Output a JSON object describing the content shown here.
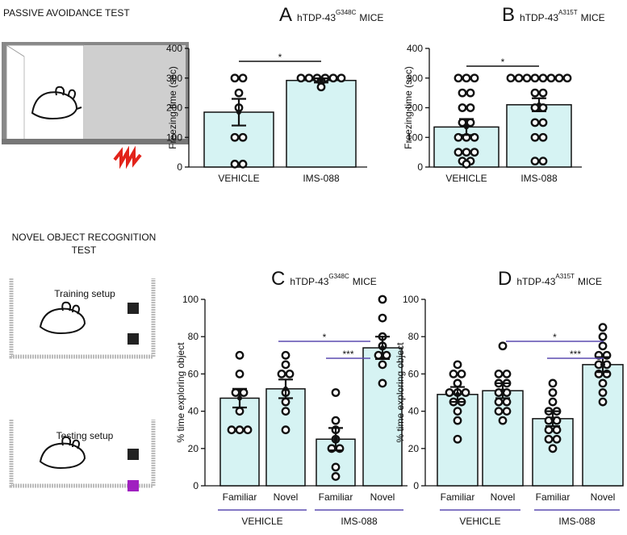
{
  "labels": {
    "passive": "PASSIVE AVOIDANCE TEST",
    "novel_line1": "NOVEL OBJECT RECOGNITION",
    "novel_line2": "TEST",
    "training": "Training setup",
    "testing": "Testing setup"
  },
  "chart_data": [
    {
      "type": "bar",
      "panel": "A",
      "title": "hTDP-43",
      "title_superscript": "G348C",
      "title_suffix": "MICE",
      "ylabel": "Freezing time (sec)",
      "categories": [
        "VEHICLE",
        "IMS-088"
      ],
      "values": [
        185,
        292
      ],
      "errors": [
        45,
        7
      ],
      "points": [
        [
          300,
          300,
          250,
          200,
          100,
          100,
          10,
          10
        ],
        [
          300,
          300,
          300,
          300,
          300,
          300,
          290,
          270
        ]
      ],
      "color": "#d6f3f3",
      "ylim": [
        0,
        400
      ],
      "yticks": [
        0,
        100,
        200,
        300,
        400
      ],
      "annotations": [
        "*"
      ]
    },
    {
      "type": "bar",
      "panel": "B",
      "title": "hTDP-43",
      "title_superscript": "A315T",
      "title_suffix": "MICE",
      "ylabel": "Freezing time (sec)",
      "categories": [
        "VEHICLE",
        "IMS-088"
      ],
      "values": [
        135,
        210
      ],
      "errors": [
        27,
        22
      ],
      "points": [
        [
          300,
          300,
          300,
          250,
          250,
          200,
          200,
          150,
          150,
          100,
          100,
          100,
          50,
          50,
          50,
          20,
          20,
          10
        ],
        [
          300,
          300,
          300,
          300,
          300,
          300,
          300,
          300,
          250,
          250,
          200,
          200,
          150,
          150,
          100,
          100,
          20,
          20
        ]
      ],
      "color": "#d6f3f3",
      "ylim": [
        0,
        400
      ],
      "yticks": [
        0,
        100,
        200,
        300,
        400
      ],
      "annotations": [
        "*"
      ]
    },
    {
      "type": "bar",
      "panel": "C",
      "title": "hTDP-43",
      "title_superscript": "G348C",
      "title_suffix": "MICE",
      "ylabel": "% time exploring object",
      "categories": [
        "Familiar",
        "Novel",
        "Familiar",
        "Novel"
      ],
      "groups": [
        "VEHICLE",
        "IMS-088"
      ],
      "values": [
        47,
        52,
        25,
        74
      ],
      "errors": [
        5,
        5,
        6,
        6
      ],
      "points": [
        [
          70,
          60,
          50,
          50,
          40,
          30,
          30,
          30
        ],
        [
          70,
          65,
          60,
          60,
          50,
          45,
          40,
          30
        ],
        [
          50,
          35,
          30,
          25,
          20,
          20,
          10,
          5
        ],
        [
          100,
          90,
          80,
          75,
          70,
          70,
          65,
          55
        ]
      ],
      "color": "#d6f3f3",
      "ylim": [
        0,
        100
      ],
      "yticks": [
        0,
        20,
        40,
        60,
        80,
        100
      ],
      "annotations": [
        "*",
        "***"
      ]
    },
    {
      "type": "bar",
      "panel": "D",
      "title": "hTDP-43",
      "title_superscript": "A315T",
      "title_suffix": "MICE",
      "ylabel": "% time exploring object",
      "categories": [
        "Familiar",
        "Novel",
        "Familiar",
        "Novel"
      ],
      "groups": [
        "VEHICLE",
        "IMS-088"
      ],
      "values": [
        49,
        51,
        36,
        65
      ],
      "errors": [
        4,
        4,
        4,
        4
      ],
      "points": [
        [
          65,
          60,
          60,
          55,
          50,
          50,
          50,
          45,
          45,
          40,
          35,
          25
        ],
        [
          75,
          60,
          60,
          55,
          55,
          50,
          50,
          45,
          45,
          40,
          40,
          35
        ],
        [
          55,
          50,
          45,
          40,
          40,
          35,
          35,
          30,
          30,
          25,
          25,
          20
        ],
        [
          85,
          80,
          75,
          70,
          70,
          65,
          65,
          60,
          60,
          55,
          50,
          45
        ]
      ],
      "color": "#d6f3f3",
      "ylim": [
        0,
        100
      ],
      "yticks": [
        0,
        20,
        40,
        60,
        80,
        100
      ],
      "annotations": [
        "*",
        "***"
      ]
    }
  ]
}
